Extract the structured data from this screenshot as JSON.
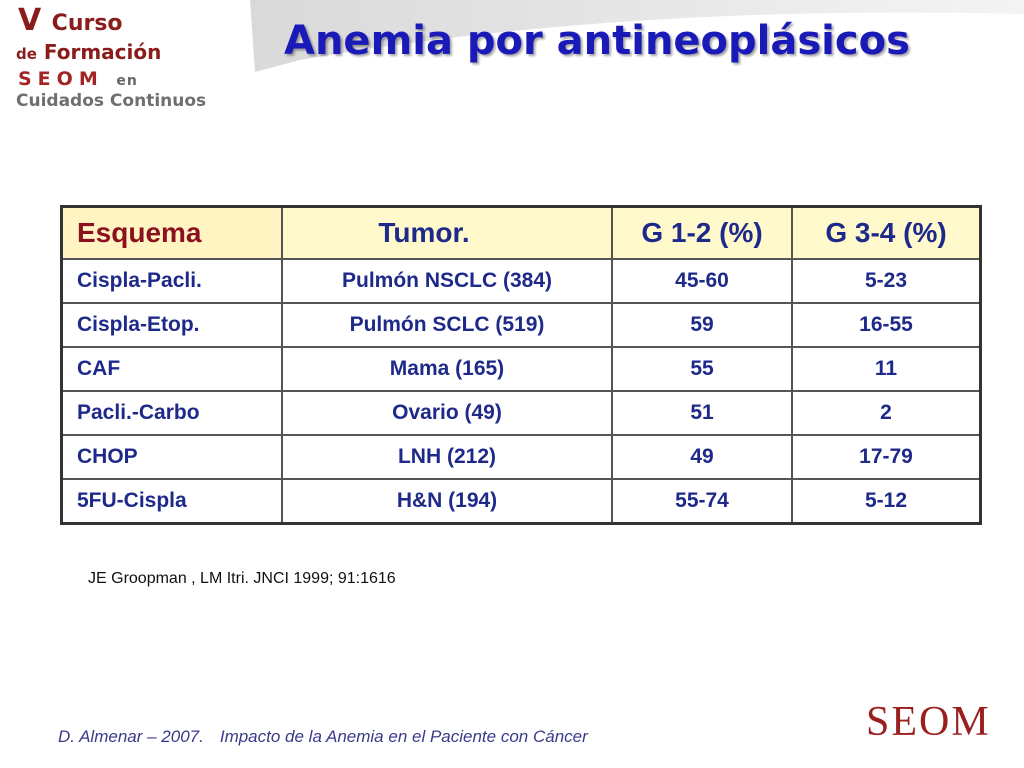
{
  "logo": {
    "line1_big": "V",
    "line1_rest": "Curso",
    "line2_small": "de",
    "line2_rest": "Formación",
    "line3": "SEOM",
    "line3_en": "en",
    "line4": "Cuidados Continuos"
  },
  "title": "Anemia por antineoplásicos",
  "table": {
    "headers": [
      "Esquema",
      "Tumor.",
      "G 1-2 (%)",
      "G 3-4 (%)"
    ],
    "rows": [
      [
        "Cispla-Pacli.",
        "Pulmón NSCLC (384)",
        "45-60",
        "5-23"
      ],
      [
        "Cispla-Etop.",
        "Pulmón SCLC (519)",
        "59",
        "16-55"
      ],
      [
        "CAF",
        "Mama (165)",
        "55",
        "11"
      ],
      [
        "Pacli.-Carbo",
        "Ovario (49)",
        "51",
        "2"
      ],
      [
        "CHOP",
        "LNH (212)",
        "49",
        "17-79"
      ],
      [
        "5FU-Cispla",
        "H&N (194)",
        "55-74",
        "5-12"
      ]
    ]
  },
  "reference": "JE Groopman , LM Itri. JNCI 1999; 91:1616",
  "footer": {
    "author": "D. Almenar – 2007.",
    "subtitle": "Impacto de la Anemia en el Paciente con Cáncer"
  },
  "brand": "SEOM",
  "colors": {
    "title": "#1a1ab8",
    "table_text": "#1e2a8a",
    "header_bg": "#fff9cc",
    "brand": "#9a2020"
  }
}
